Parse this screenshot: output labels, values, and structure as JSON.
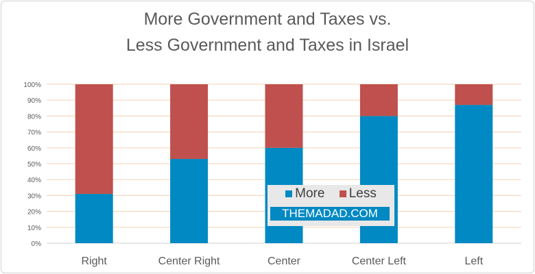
{
  "chart_data": {
    "type": "bar",
    "stacked": "percent",
    "title": [
      "More Government and Taxes vs.",
      "Less Government and Taxes in Israel"
    ],
    "categories": [
      "Right",
      "Center Right",
      "Center",
      "Center Left",
      "Left"
    ],
    "series": [
      {
        "name": "More",
        "color": "#0089c2",
        "values": [
          31,
          53,
          60,
          80,
          87
        ]
      },
      {
        "name": "Less",
        "color": "#c0504d",
        "values": [
          69,
          47,
          40,
          20,
          13
        ]
      }
    ],
    "yticks": [
      "0%",
      "10%",
      "20%",
      "30%",
      "40%",
      "50%",
      "60%",
      "70%",
      "80%",
      "90%",
      "100%"
    ],
    "ylim": [
      0,
      100
    ],
    "grid": true,
    "gridColor": "#f5d9bf",
    "legend": "center-right"
  },
  "watermark": "THEMADAD.COM"
}
